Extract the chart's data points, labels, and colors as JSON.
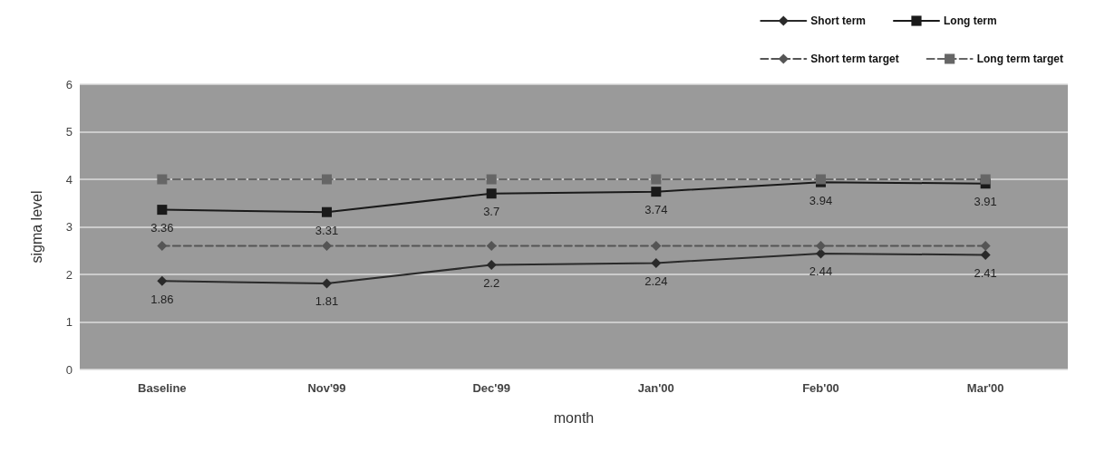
{
  "chart_data": {
    "type": "line",
    "xlabel": "month",
    "ylabel": "sigma level",
    "categories": [
      "Baseline",
      "Nov'99",
      "Dec'99",
      "Jan'00",
      "Feb'00",
      "Mar'00"
    ],
    "series": [
      {
        "name": "Short term",
        "color": "#2a2a2a",
        "marker": "diamond",
        "line_style": "solid",
        "values": [
          1.86,
          1.81,
          2.2,
          2.24,
          2.44,
          2.41
        ],
        "value_labels": [
          "1.86",
          "1.81",
          "2.2",
          "2.24",
          "2.44",
          "2.41"
        ]
      },
      {
        "name": "Long term",
        "color": "#1a1a1a",
        "marker": "square",
        "line_style": "solid",
        "values": [
          3.36,
          3.31,
          3.7,
          3.74,
          3.94,
          3.91
        ],
        "value_labels": [
          "3.36",
          "3.31",
          "3.7",
          "3.74",
          "3.94",
          "3.91"
        ]
      },
      {
        "name": "Short term target",
        "color": "#555555",
        "marker": "diamond",
        "line_style": "dashed",
        "values": [
          2.6,
          2.6,
          2.6,
          2.6,
          2.6,
          2.6
        ]
      },
      {
        "name": "Long term target",
        "color": "#666666",
        "marker": "square",
        "line_style": "dashed",
        "values": [
          4.0,
          4.0,
          4.0,
          4.0,
          4.0,
          4.0
        ]
      }
    ],
    "ylim": [
      0,
      6
    ],
    "yticks": [
      0,
      1,
      2,
      3,
      4,
      5,
      6
    ],
    "grid": "y",
    "legend": "top right"
  }
}
